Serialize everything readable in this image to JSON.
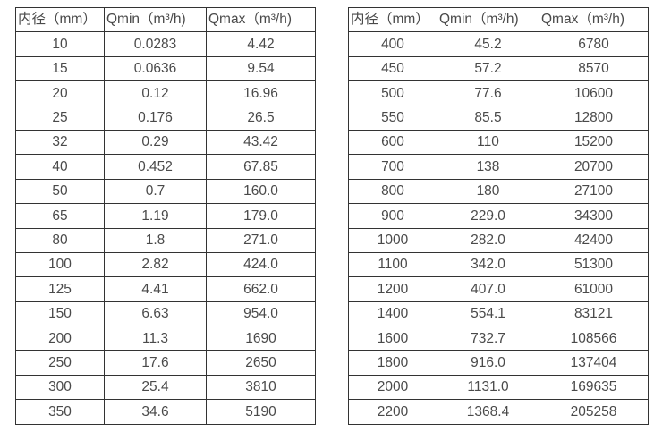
{
  "colors": {
    "border": "#333333",
    "text": "#4a4a4a",
    "background": "#ffffff"
  },
  "chart_data": [
    {
      "type": "table",
      "title": "",
      "columns": [
        "内径（mm）",
        "Qmin（m³/h)",
        "Qmax（m³/h)"
      ],
      "rows": [
        [
          "10",
          "0.0283",
          "4.42"
        ],
        [
          "15",
          "0.0636",
          "9.54"
        ],
        [
          "20",
          "0.12",
          "16.96"
        ],
        [
          "25",
          "0.176",
          "26.5"
        ],
        [
          "32",
          "0.29",
          "43.42"
        ],
        [
          "40",
          "0.452",
          "67.85"
        ],
        [
          "50",
          "0.7",
          "160.0"
        ],
        [
          "65",
          "1.19",
          "179.0"
        ],
        [
          "80",
          "1.8",
          "271.0"
        ],
        [
          "100",
          "2.82",
          "424.0"
        ],
        [
          "125",
          "4.41",
          "662.0"
        ],
        [
          "150",
          "6.63",
          "954.0"
        ],
        [
          "200",
          "11.3",
          "1690"
        ],
        [
          "250",
          "17.6",
          "2650"
        ],
        [
          "300",
          "25.4",
          "3810"
        ],
        [
          "350",
          "34.6",
          "5190"
        ]
      ]
    },
    {
      "type": "table",
      "title": "",
      "columns": [
        "内径（mm）",
        "Qmin（m³/h)",
        "Qmax（m³/h)"
      ],
      "rows": [
        [
          "400",
          "45.2",
          "6780"
        ],
        [
          "450",
          "57.2",
          "8570"
        ],
        [
          "500",
          "77.6",
          "10600"
        ],
        [
          "550",
          "85.5",
          "12800"
        ],
        [
          "600",
          "110",
          "15200"
        ],
        [
          "700",
          "138",
          "20700"
        ],
        [
          "800",
          "180",
          "27100"
        ],
        [
          "900",
          "229.0",
          "34300"
        ],
        [
          "1000",
          "282.0",
          "42400"
        ],
        [
          "1100",
          "342.0",
          "51300"
        ],
        [
          "1200",
          "407.0",
          "61000"
        ],
        [
          "1400",
          "554.1",
          "83121"
        ],
        [
          "1600",
          "732.7",
          "108566"
        ],
        [
          "1800",
          "916.0",
          "137404"
        ],
        [
          "2000",
          "1131.0",
          "169635"
        ],
        [
          "2200",
          "1368.4",
          "205258"
        ]
      ]
    }
  ]
}
